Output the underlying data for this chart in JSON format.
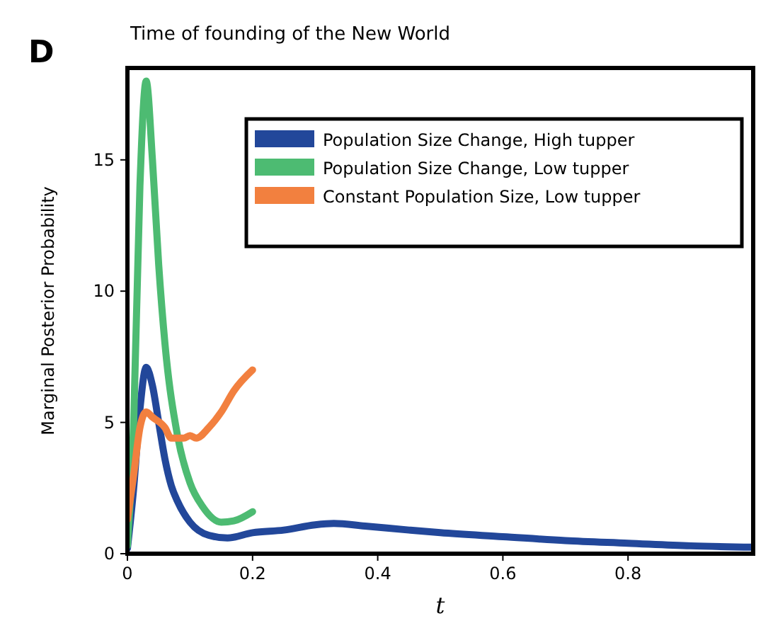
{
  "chart_data": {
    "type": "line",
    "title": "Time of founding of the New World",
    "annotations": [
      "D"
    ],
    "xlabel": "t",
    "ylabel": "Marginal Posterior Probability",
    "xlim": [
      0,
      1
    ],
    "ylim": [
      0,
      18.5
    ],
    "xticks": [
      0,
      0.2,
      0.4,
      0.6,
      0.8
    ],
    "yticks": [
      0,
      5,
      10,
      15
    ],
    "legend": "top right",
    "grid": false,
    "series": [
      {
        "name": "Population Size Change, High tupper",
        "color": "#22479a",
        "x": [
          0,
          0.01,
          0.02,
          0.03,
          0.04,
          0.05,
          0.06,
          0.07,
          0.08,
          0.1,
          0.13,
          0.16,
          0.2,
          0.25,
          0.3,
          0.33,
          0.38,
          0.45,
          0.5,
          0.6,
          0.7,
          0.8,
          0.9,
          1.0
        ],
        "values": [
          0.2,
          2.5,
          5.5,
          7.1,
          6.4,
          5,
          3.6,
          2.6,
          2,
          1.2,
          0.7,
          0.6,
          0.8,
          0.9,
          1.1,
          1.15,
          1.05,
          0.9,
          0.8,
          0.65,
          0.5,
          0.4,
          0.3,
          0.25
        ]
      },
      {
        "name": "Population Size Change, Low tupper",
        "color": "#4dbb72",
        "x": [
          0,
          0.01,
          0.02,
          0.03,
          0.04,
          0.05,
          0.06,
          0.08,
          0.1,
          0.12,
          0.15,
          0.17,
          0.2
        ],
        "values": [
          0.3,
          5,
          14,
          18,
          15,
          11,
          8,
          4.5,
          2.7,
          1.8,
          1.2,
          1.25,
          1.6
        ]
      },
      {
        "name": "Constant Population Size, Low tupper",
        "color": "#f2803f",
        "x": [
          0,
          0.01,
          0.02,
          0.03,
          0.04,
          0.06,
          0.07,
          0.09,
          0.1,
          0.11,
          0.13,
          0.15,
          0.17,
          0.2
        ],
        "values": [
          1.3,
          3,
          4.8,
          5.4,
          5.2,
          4.8,
          4.4,
          4.4,
          4.5,
          4.4,
          4.8,
          5.4,
          6.2,
          7
        ]
      }
    ]
  }
}
